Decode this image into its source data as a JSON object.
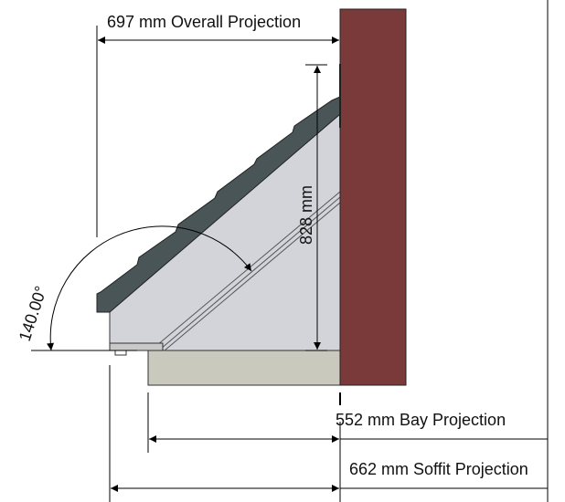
{
  "dimensions": {
    "overall_projection": "697 mm Overall Projection",
    "height": "828 mm",
    "angle": "140.00°",
    "bay_projection": "552 mm Bay Projection",
    "soffit_projection": "662 mm Soffit Projection"
  },
  "colors": {
    "wall": "#7a3a3a",
    "roof_tiles": "#4a5558",
    "roof_body": "#d3d3da",
    "bay_sill": "#c9c9bd",
    "lines": "#000000"
  }
}
